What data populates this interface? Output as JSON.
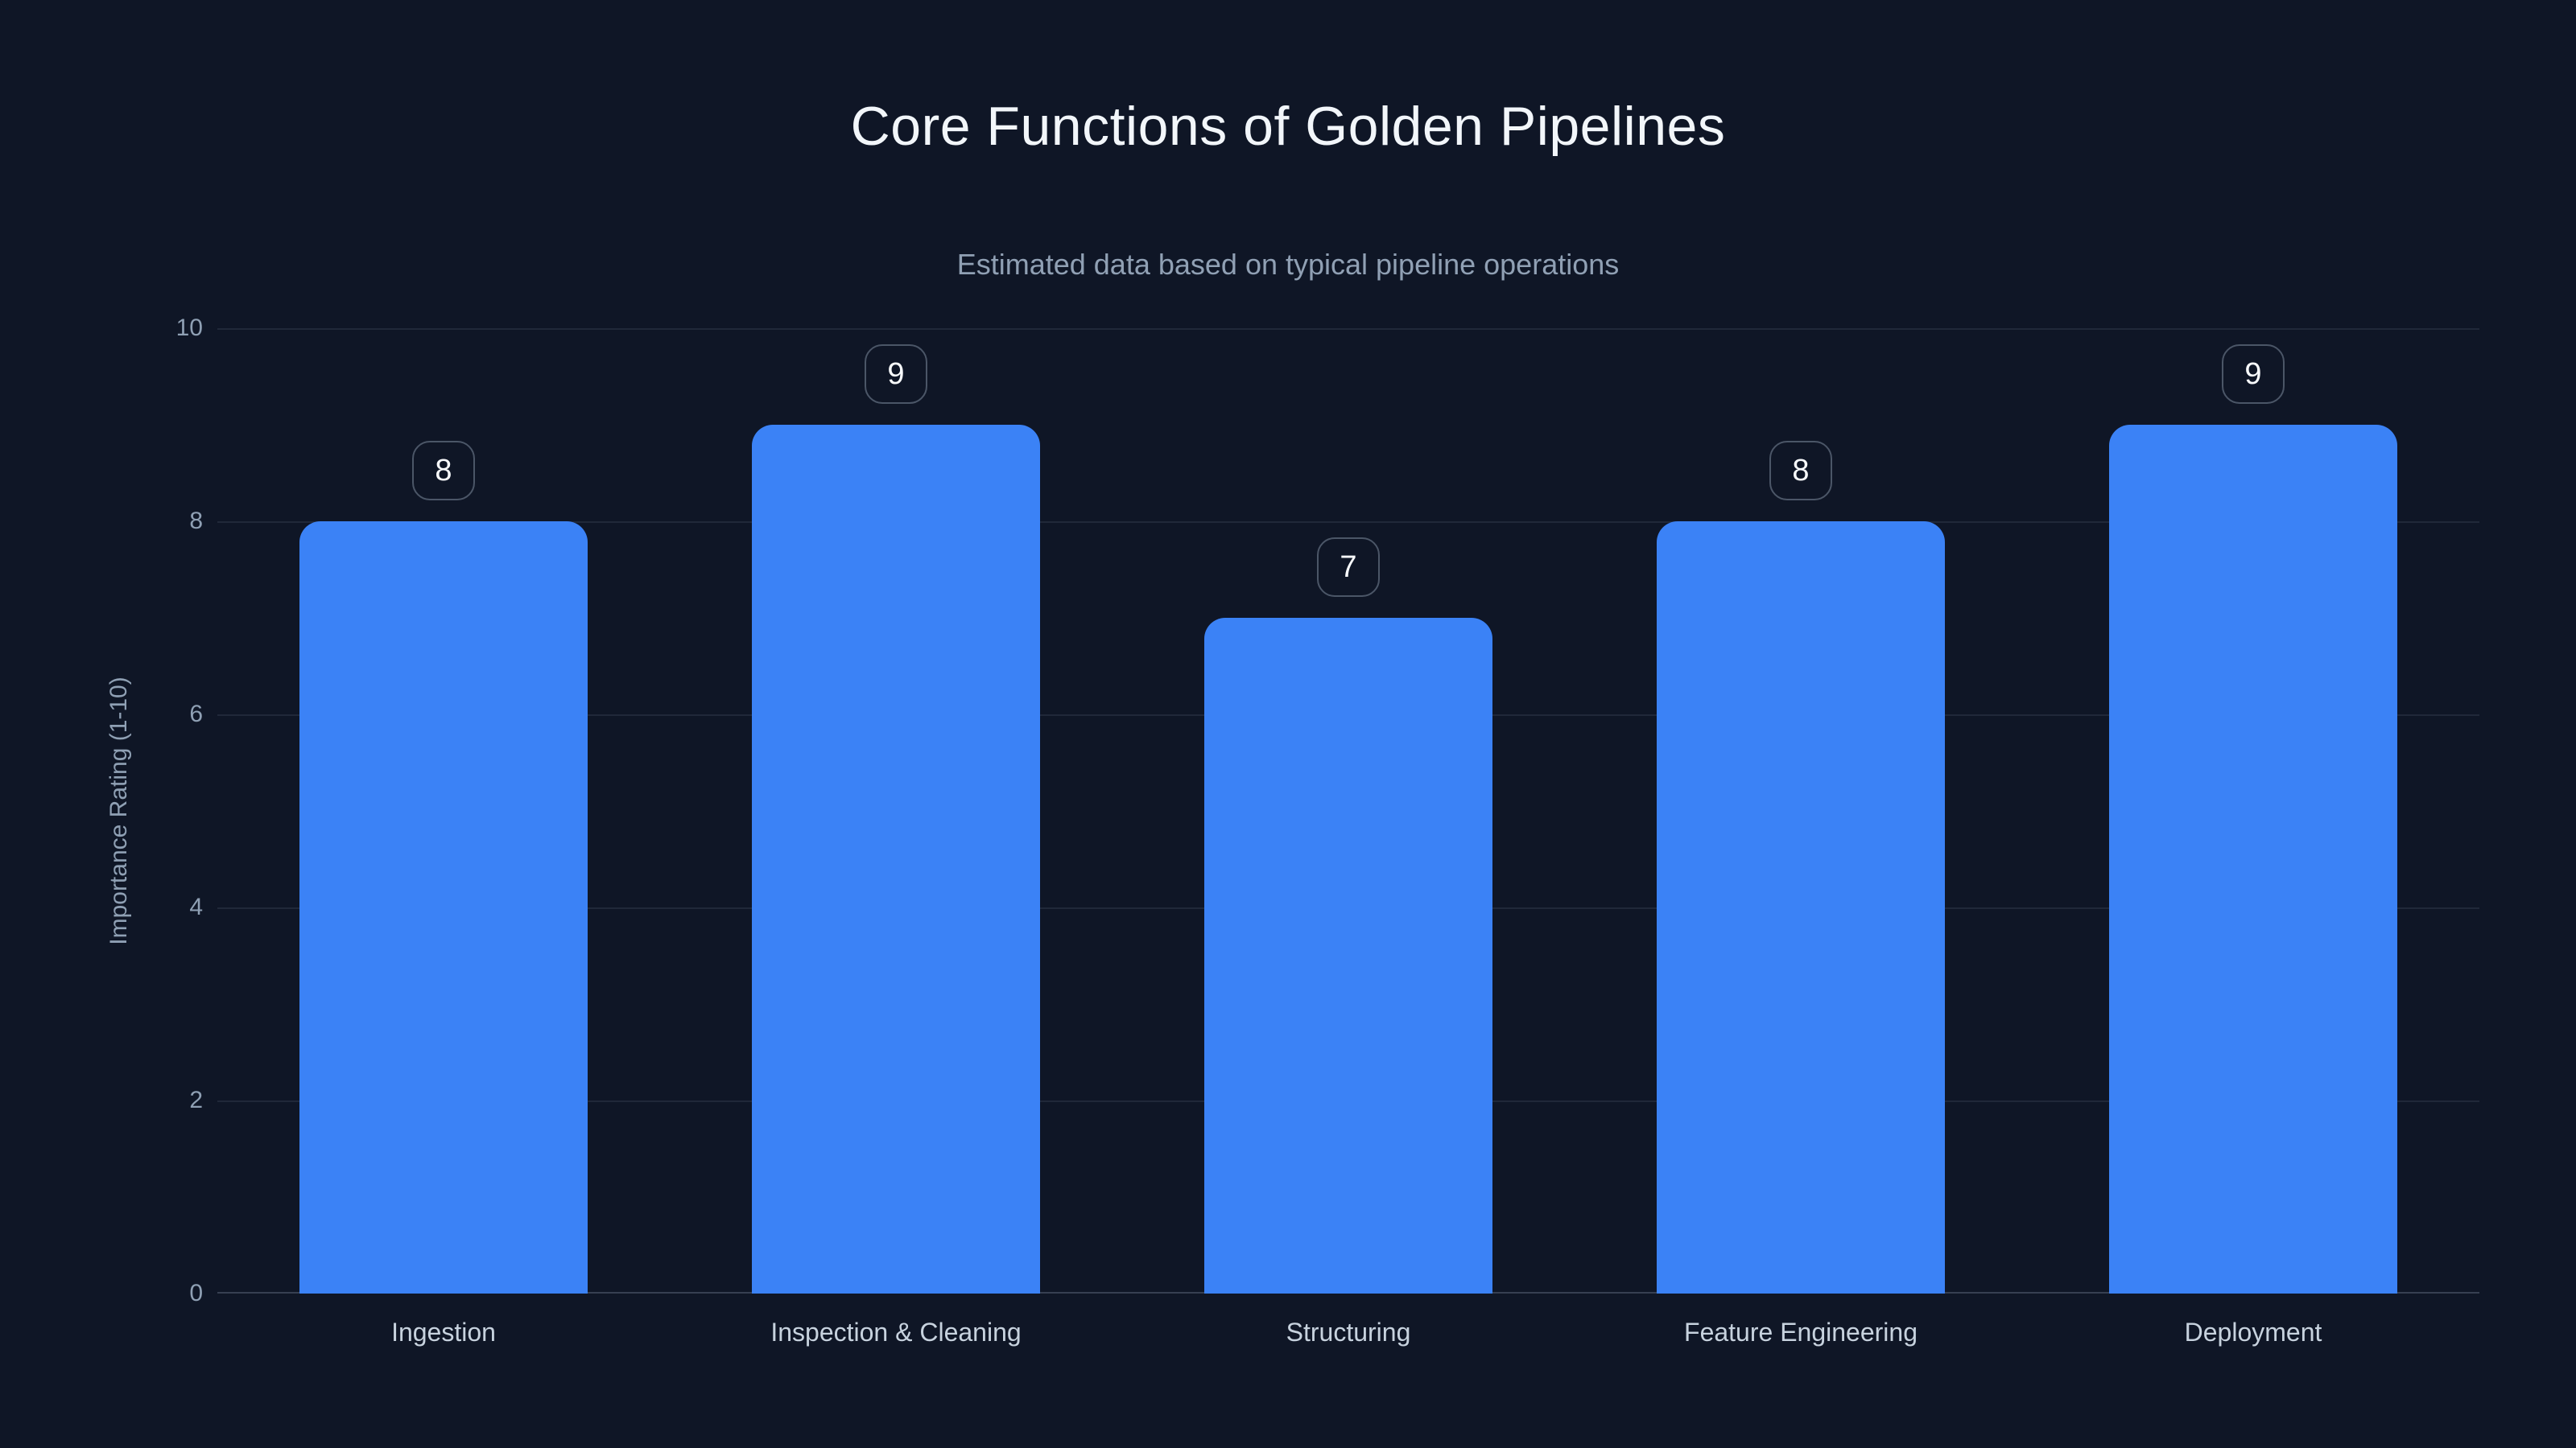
{
  "header": {
    "title": "Core Functions of Golden Pipelines",
    "subtitle": "Estimated data based on typical pipeline operations"
  },
  "chart_data": {
    "type": "bar",
    "title": "Core Functions of Golden Pipelines",
    "subtitle": "Estimated data based on typical pipeline operations",
    "categories": [
      "Ingestion",
      "Inspection & Cleaning",
      "Structuring",
      "Feature Engineering",
      "Deployment"
    ],
    "values": [
      8,
      9,
      7,
      8,
      9
    ],
    "data_labels": [
      "8",
      "9",
      "7",
      "8",
      "9"
    ],
    "xlabel": "",
    "ylabel": "Importance Rating (1-10)",
    "ylim": [
      0,
      10
    ],
    "yticks": [
      0,
      2,
      4,
      6,
      8,
      10
    ],
    "grid": true,
    "legend": false,
    "colors": {
      "background": "#0f1626",
      "bar": "#3b82f6",
      "title_text": "#f2f6fa",
      "subtitle_text": "#90a0b4",
      "axis_text": "#8fa0b4",
      "category_text": "#c7d2de",
      "badge_text": "#f8fafc"
    }
  }
}
